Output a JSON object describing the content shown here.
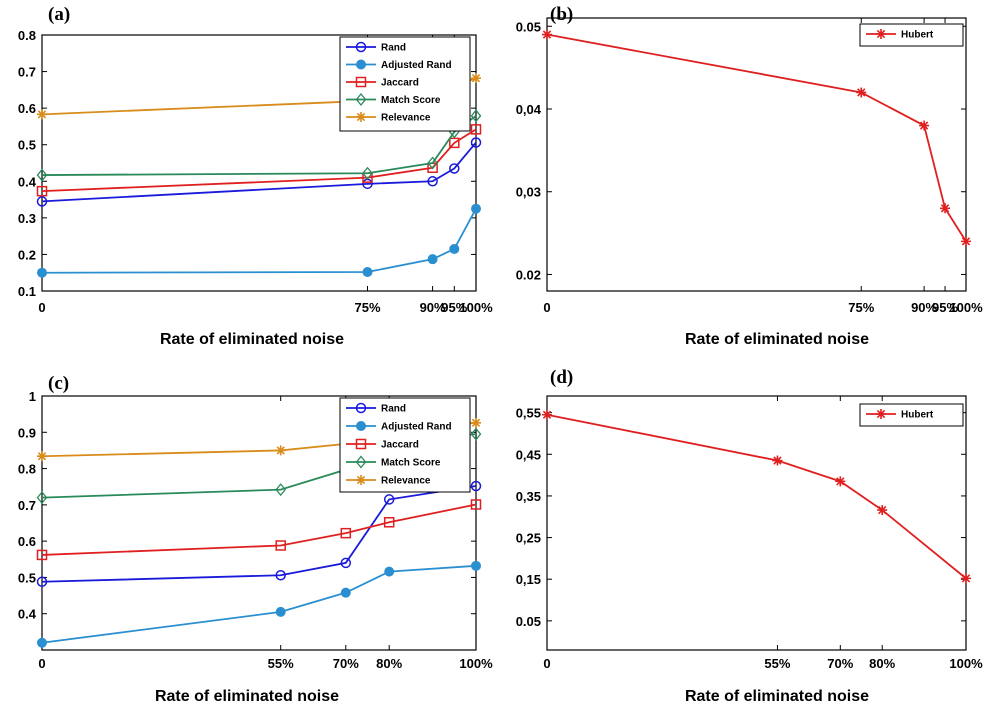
{
  "chart_data": [
    {
      "panel": "(a)",
      "type": "line",
      "x_tick_labels": [
        "0",
        "75%",
        "90%",
        "95%",
        "100%"
      ],
      "x": [
        0,
        75,
        90,
        95,
        100
      ],
      "xlabel": "Rate of eliminated noise",
      "ylabel": "",
      "ylim": [
        0.1,
        0.8
      ],
      "y_ticks": [
        "0.1",
        "0.2",
        "0.3",
        "0.4",
        "0.5",
        "0.6",
        "0.7",
        "0.8"
      ],
      "legend_position": "top-right",
      "grid": false,
      "series": [
        {
          "name": "Rand",
          "color": "#1a1adb",
          "marker": "circle",
          "values": [
            0.345,
            0.393,
            0.4,
            0.435,
            0.506
          ]
        },
        {
          "name": "Adjusted Rand",
          "color": "#2a8fd0",
          "marker": "filled-circle",
          "values": [
            0.15,
            0.152,
            0.187,
            0.215,
            0.325
          ]
        },
        {
          "name": "Jaccard",
          "color": "#e02020",
          "marker": "square",
          "values": [
            0.373,
            0.41,
            0.437,
            0.505,
            0.542
          ]
        },
        {
          "name": "Match Score",
          "color": "#2a8a5a",
          "marker": "diamond",
          "values": [
            0.417,
            0.422,
            0.45,
            0.535,
            0.579
          ]
        },
        {
          "name": "Relevance",
          "color": "#d98c1a",
          "marker": "star",
          "values": [
            0.583,
            0.62,
            0.627,
            0.66,
            0.682
          ]
        }
      ]
    },
    {
      "panel": "(b)",
      "type": "line",
      "x_tick_labels": [
        "0",
        "75%",
        "90%",
        "95%",
        "100%"
      ],
      "x": [
        0,
        75,
        90,
        95,
        100
      ],
      "xlabel": "Rate of eliminated noise",
      "ylabel": "",
      "ylim": [
        0.018,
        0.051
      ],
      "y_ticks": [
        "0.02",
        "0,03",
        "0,04",
        "0.05"
      ],
      "legend_position": "top-right",
      "grid": false,
      "series": [
        {
          "name": "Hubert",
          "color": "#e02020",
          "marker": "star",
          "values": [
            0.049,
            0.042,
            0.038,
            0.028,
            0.024
          ]
        }
      ]
    },
    {
      "panel": "(c)",
      "type": "line",
      "x_tick_labels": [
        "0",
        "55%",
        "70%",
        "80%",
        "100%"
      ],
      "x": [
        0,
        55,
        70,
        80,
        100
      ],
      "xlabel": "Rate of eliminated noise",
      "ylabel": "",
      "ylim": [
        0.3,
        1.0
      ],
      "y_ticks": [
        "0.4",
        "0.5",
        "0.6",
        "0.7",
        "0.8",
        "0.9",
        "1"
      ],
      "legend_position": "top-right",
      "grid": false,
      "series": [
        {
          "name": "Rand",
          "color": "#1a1adb",
          "marker": "circle",
          "values": [
            0.488,
            0.506,
            0.54,
            0.715,
            0.752
          ]
        },
        {
          "name": "Adjusted Rand",
          "color": "#2a8fd0",
          "marker": "filled-circle",
          "values": [
            0.32,
            0.405,
            0.458,
            0.516,
            0.532
          ]
        },
        {
          "name": "Jaccard",
          "color": "#e02020",
          "marker": "square",
          "values": [
            0.562,
            0.588,
            0.622,
            0.652,
            0.701
          ]
        },
        {
          "name": "Match Score",
          "color": "#2a8a5a",
          "marker": "diamond",
          "values": [
            0.72,
            0.742,
            0.797,
            0.877,
            0.895
          ]
        },
        {
          "name": "Relevance",
          "color": "#d98c1a",
          "marker": "star",
          "values": [
            0.834,
            0.85,
            0.868,
            0.907,
            0.926
          ]
        }
      ]
    },
    {
      "panel": "(d)",
      "type": "line",
      "x_tick_labels": [
        "0",
        "55%",
        "70%",
        "80%",
        "100%"
      ],
      "x": [
        0,
        55,
        70,
        80,
        100
      ],
      "xlabel": "Rate of eliminated noise",
      "ylabel": "",
      "ylim": [
        -0.02,
        0.59
      ],
      "y_ticks": [
        "0.05",
        "0,15",
        "0,25",
        "0,35",
        "0,45",
        "0,55"
      ],
      "legend_position": "top-right",
      "grid": false,
      "series": [
        {
          "name": "Hubert",
          "color": "#e02020",
          "marker": "star",
          "values": [
            0.545,
            0.435,
            0.385,
            0.316,
            0.152
          ]
        }
      ]
    }
  ]
}
